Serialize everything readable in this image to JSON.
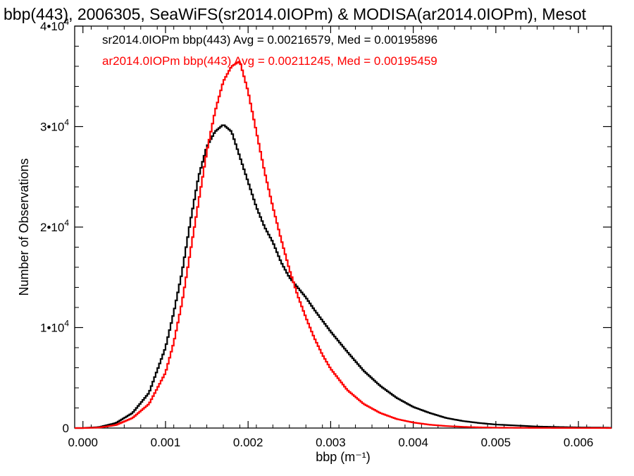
{
  "chart_data": {
    "type": "line",
    "title": "bbp(443), 2006305, SeaWiFS(sr2014.0IOPm) & MODISA(ar2014.0IOPm), Mesot",
    "xlabel": "bbp (m⁻¹)",
    "ylabel": "Number of Observations",
    "xlim": [
      -0.0001,
      0.0064
    ],
    "ylim": [
      0,
      40000
    ],
    "grid": false,
    "legend_position": "top-left",
    "x_ticks": [
      {
        "value": 0.0,
        "label": "0.000"
      },
      {
        "value": 0.001,
        "label": "0.001"
      },
      {
        "value": 0.002,
        "label": "0.002"
      },
      {
        "value": 0.003,
        "label": "0.003"
      },
      {
        "value": 0.004,
        "label": "0.004"
      },
      {
        "value": 0.005,
        "label": "0.005"
      },
      {
        "value": 0.006,
        "label": "0.006"
      }
    ],
    "y_ticks": [
      {
        "value": 0,
        "label": "0"
      },
      {
        "value": 10000,
        "label": "1•10",
        "sup": "4"
      },
      {
        "value": 20000,
        "label": "2•10",
        "sup": "4"
      },
      {
        "value": 30000,
        "label": "3•10",
        "sup": "4"
      },
      {
        "value": 40000,
        "label": "4•10",
        "sup": "4"
      }
    ],
    "series": [
      {
        "name": "sr2014.0IOPm bbp(443) Avg = 0.00216579, Med = 0.00195896",
        "color": "#000000",
        "x": [
          0.0,
          0.0002,
          0.0004,
          0.0006,
          0.0008,
          0.001,
          0.0011,
          0.0012,
          0.0013,
          0.0014,
          0.0015,
          0.0016,
          0.0017,
          0.0018,
          0.0019,
          0.002,
          0.0021,
          0.0022,
          0.0023,
          0.0024,
          0.0025,
          0.0026,
          0.0027,
          0.0028,
          0.0029,
          0.003,
          0.0032,
          0.0034,
          0.0036,
          0.0038,
          0.004,
          0.0042,
          0.0044,
          0.0046,
          0.0048,
          0.005,
          0.0055,
          0.006,
          0.0064
        ],
        "y": [
          0,
          100,
          500,
          1500,
          3500,
          8000,
          11500,
          15500,
          20500,
          25000,
          28000,
          29500,
          30200,
          29500,
          27000,
          24500,
          22000,
          20000,
          18500,
          16500,
          15000,
          14000,
          13000,
          11800,
          10700,
          9600,
          7600,
          5700,
          4200,
          3000,
          2100,
          1500,
          1000,
          700,
          500,
          350,
          150,
          60,
          30
        ]
      },
      {
        "name": "ar2014.0IOPm bbp(443) Avg = 0.00211245, Med = 0.00195459",
        "color": "#ff0000",
        "x": [
          0.0,
          0.0002,
          0.0004,
          0.0006,
          0.0008,
          0.001,
          0.0011,
          0.0012,
          0.0013,
          0.0014,
          0.0015,
          0.0016,
          0.0017,
          0.0018,
          0.0019,
          0.002,
          0.0021,
          0.0022,
          0.0023,
          0.0024,
          0.0025,
          0.0026,
          0.0027,
          0.0028,
          0.0029,
          0.003,
          0.0032,
          0.0034,
          0.0036,
          0.0038,
          0.004,
          0.0042,
          0.0044,
          0.0046,
          0.0048,
          0.005,
          0.0055,
          0.006,
          0.0064
        ],
        "y": [
          0,
          50,
          300,
          1000,
          2400,
          5500,
          8500,
          12500,
          17500,
          22500,
          27500,
          31500,
          34500,
          36000,
          36500,
          33500,
          29500,
          25500,
          22000,
          18800,
          15800,
          13200,
          11000,
          9000,
          7300,
          5900,
          3800,
          2400,
          1500,
          900,
          550,
          330,
          200,
          120,
          70,
          40,
          15,
          5,
          2
        ]
      }
    ]
  }
}
